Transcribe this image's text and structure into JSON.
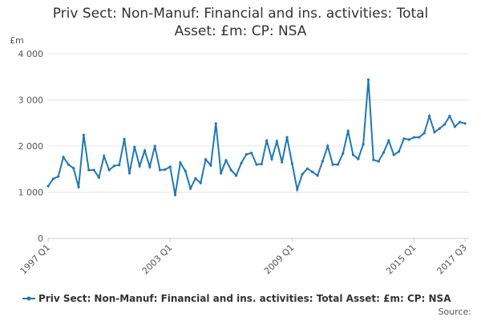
{
  "chart_data": {
    "type": "line",
    "title": "Priv Sect: Non-Manuf: Financial and ins. activities: Total Asset: £m: CP: NSA",
    "y_unit": "£m",
    "source": "Source:",
    "categories": [
      "1997 Q1",
      null,
      null,
      null,
      null,
      null,
      null,
      null,
      null,
      null,
      null,
      null,
      null,
      null,
      null,
      null,
      null,
      null,
      null,
      null,
      null,
      null,
      null,
      null,
      "2003 Q1",
      null,
      null,
      null,
      null,
      null,
      null,
      null,
      null,
      null,
      null,
      null,
      null,
      null,
      null,
      null,
      null,
      null,
      null,
      null,
      null,
      null,
      null,
      null,
      "2009 Q1",
      null,
      null,
      null,
      null,
      null,
      null,
      null,
      null,
      null,
      null,
      null,
      null,
      null,
      null,
      null,
      null,
      null,
      null,
      null,
      null,
      null,
      null,
      null,
      "2015 Q1",
      null,
      null,
      null,
      null,
      null,
      null,
      null,
      null,
      null,
      "2017 Q3"
    ],
    "series": [
      {
        "name": "Priv Sect: Non-Manuf: Financial and ins. activities: Total Asset: £m: CP: NSA",
        "color": "#1f78b4",
        "values": [
          1130,
          1290,
          1340,
          1760,
          1600,
          1520,
          1110,
          2240,
          1480,
          1480,
          1320,
          1780,
          1480,
          1570,
          1590,
          2150,
          1410,
          1980,
          1570,
          1900,
          1550,
          2000,
          1480,
          1490,
          1550,
          940,
          1640,
          1460,
          1080,
          1300,
          1200,
          1710,
          1580,
          2490,
          1410,
          1690,
          1480,
          1360,
          1630,
          1820,
          1850,
          1600,
          1610,
          2120,
          1720,
          2100,
          1650,
          2190,
          1620,
          1060,
          1390,
          1510,
          1440,
          1360,
          1670,
          2000,
          1600,
          1600,
          1840,
          2330,
          1810,
          1720,
          2040,
          3440,
          1700,
          1670,
          1860,
          2120,
          1810,
          1880,
          2160,
          2140,
          2190,
          2190,
          2280,
          2650,
          2300,
          2380,
          2470,
          2650,
          2420,
          2520,
          2490
        ]
      }
    ],
    "ylim": [
      0,
      4000
    ],
    "yticks": [
      0,
      {
        "value": 1000,
        "label": "1 000"
      },
      {
        "value": 2000,
        "label": "2 000"
      },
      {
        "value": 3000,
        "label": "3 000"
      },
      {
        "value": 4000,
        "label": "4 000"
      }
    ],
    "grid": true,
    "legend": "bottom"
  }
}
